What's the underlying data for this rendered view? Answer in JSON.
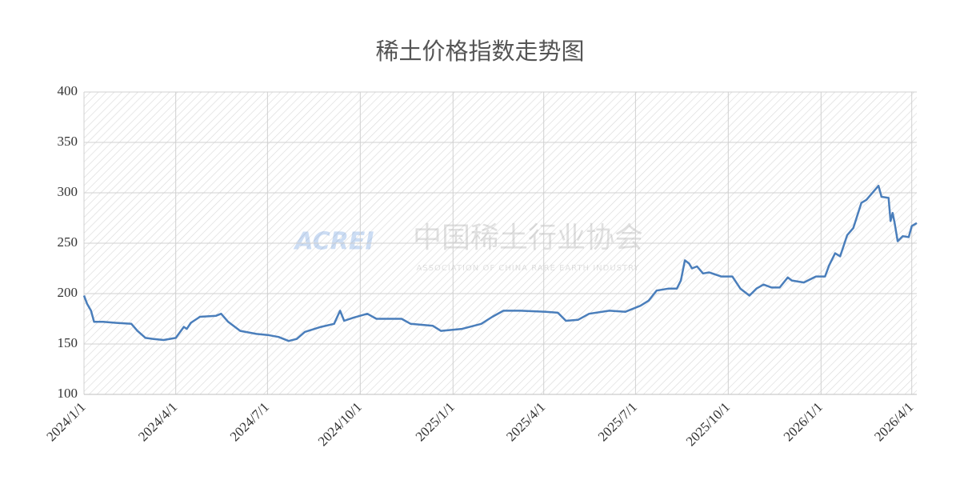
{
  "chart_data": {
    "type": "line",
    "title": "稀土价格指数走势图",
    "watermark": {
      "logo": "ACREI",
      "name": "中国稀土行业协会",
      "subtitle": "ASSOCIATION OF CHINA RARE EARTH INDUSTRY"
    },
    "x": [
      "2024-01-01",
      "2024-01-04",
      "2024-01-08",
      "2024-01-11",
      "2024-01-20",
      "2024-02-01",
      "2024-02-17",
      "2024-02-23",
      "2024-03-02",
      "2024-03-10",
      "2024-03-20",
      "2024-04-01",
      "2024-04-09",
      "2024-04-12",
      "2024-04-16",
      "2024-04-25",
      "2024-05-11",
      "2024-05-16",
      "2024-05-23",
      "2024-06-04",
      "2024-06-20",
      "2024-07-01",
      "2024-07-12",
      "2024-07-22",
      "2024-07-30",
      "2024-08-07",
      "2024-08-23",
      "2024-09-05",
      "2024-09-11",
      "2024-09-15",
      "2024-09-24",
      "2024-10-08",
      "2024-10-17",
      "2024-11-11",
      "2024-11-20",
      "2024-12-12",
      "2024-12-20",
      "2025-01-10",
      "2025-01-29",
      "2025-02-09",
      "2025-02-20",
      "2025-03-09",
      "2025-04-03",
      "2025-04-15",
      "2025-04-23",
      "2025-05-05",
      "2025-05-16",
      "2025-06-05",
      "2025-06-21",
      "2025-07-06",
      "2025-07-14",
      "2025-07-22",
      "2025-08-03",
      "2025-08-11",
      "2025-08-15",
      "2025-08-19",
      "2025-08-23",
      "2025-08-26",
      "2025-08-31",
      "2025-09-06",
      "2025-09-12",
      "2025-09-24",
      "2025-10-05",
      "2025-10-13",
      "2025-10-22",
      "2025-10-29",
      "2025-11-05",
      "2025-11-13",
      "2025-11-21",
      "2025-11-29",
      "2025-12-03",
      "2025-12-15",
      "2025-12-27",
      "2026-01-05",
      "2026-01-09",
      "2026-01-15",
      "2026-01-20",
      "2026-01-27",
      "2026-02-02",
      "2026-02-10",
      "2026-02-15",
      "2026-02-27",
      "2026-03-02",
      "2026-03-09",
      "2026-03-11",
      "2026-03-13",
      "2026-03-15",
      "2026-03-18",
      "2026-03-23",
      "2026-03-29",
      "2026-04-01",
      "2026-04-06"
    ],
    "series": [
      {
        "name": "稀土价格指数",
        "color": "#4a7ebb",
        "values": [
          198,
          190,
          183,
          172,
          172,
          171,
          170,
          163,
          156,
          155,
          154,
          156,
          167,
          165,
          171,
          177,
          178,
          180,
          172,
          163,
          160,
          159,
          157,
          153,
          155,
          162,
          167,
          170,
          183,
          173,
          176,
          180,
          175,
          175,
          170,
          168,
          163,
          165,
          170,
          177,
          183,
          183,
          182,
          181,
          173,
          174,
          180,
          183,
          182,
          188,
          193,
          203,
          205,
          205,
          213,
          233,
          230,
          225,
          227,
          220,
          221,
          217,
          217,
          205,
          198,
          205,
          209,
          206,
          206,
          216,
          213,
          211,
          217,
          217,
          228,
          240,
          237,
          258,
          265,
          290,
          293,
          307,
          296,
          295,
          272,
          280,
          270,
          252,
          257,
          256,
          267,
          270
        ]
      }
    ],
    "xlim": [
      "2024-01-01",
      "2026-04-06"
    ],
    "xticks": [
      {
        "value": "2024-01-01",
        "label": "2024/1/1"
      },
      {
        "value": "2024-04-01",
        "label": "2024/4/1"
      },
      {
        "value": "2024-07-01",
        "label": "2024/7/1"
      },
      {
        "value": "2024-10-01",
        "label": "2024/10/1"
      },
      {
        "value": "2025-01-01",
        "label": "2025/1/1"
      },
      {
        "value": "2025-04-01",
        "label": "2025/4/1"
      },
      {
        "value": "2025-07-01",
        "label": "2025/7/1"
      },
      {
        "value": "2025-10-01",
        "label": "2025/10/1"
      },
      {
        "value": "2026-01-01",
        "label": "2026/1/1"
      },
      {
        "value": "2026-04-01",
        "label": "2026/4/1"
      }
    ],
    "ylim": [
      100,
      400
    ],
    "yticks": [
      100,
      150,
      200,
      250,
      300,
      350,
      400
    ],
    "grid": true
  }
}
